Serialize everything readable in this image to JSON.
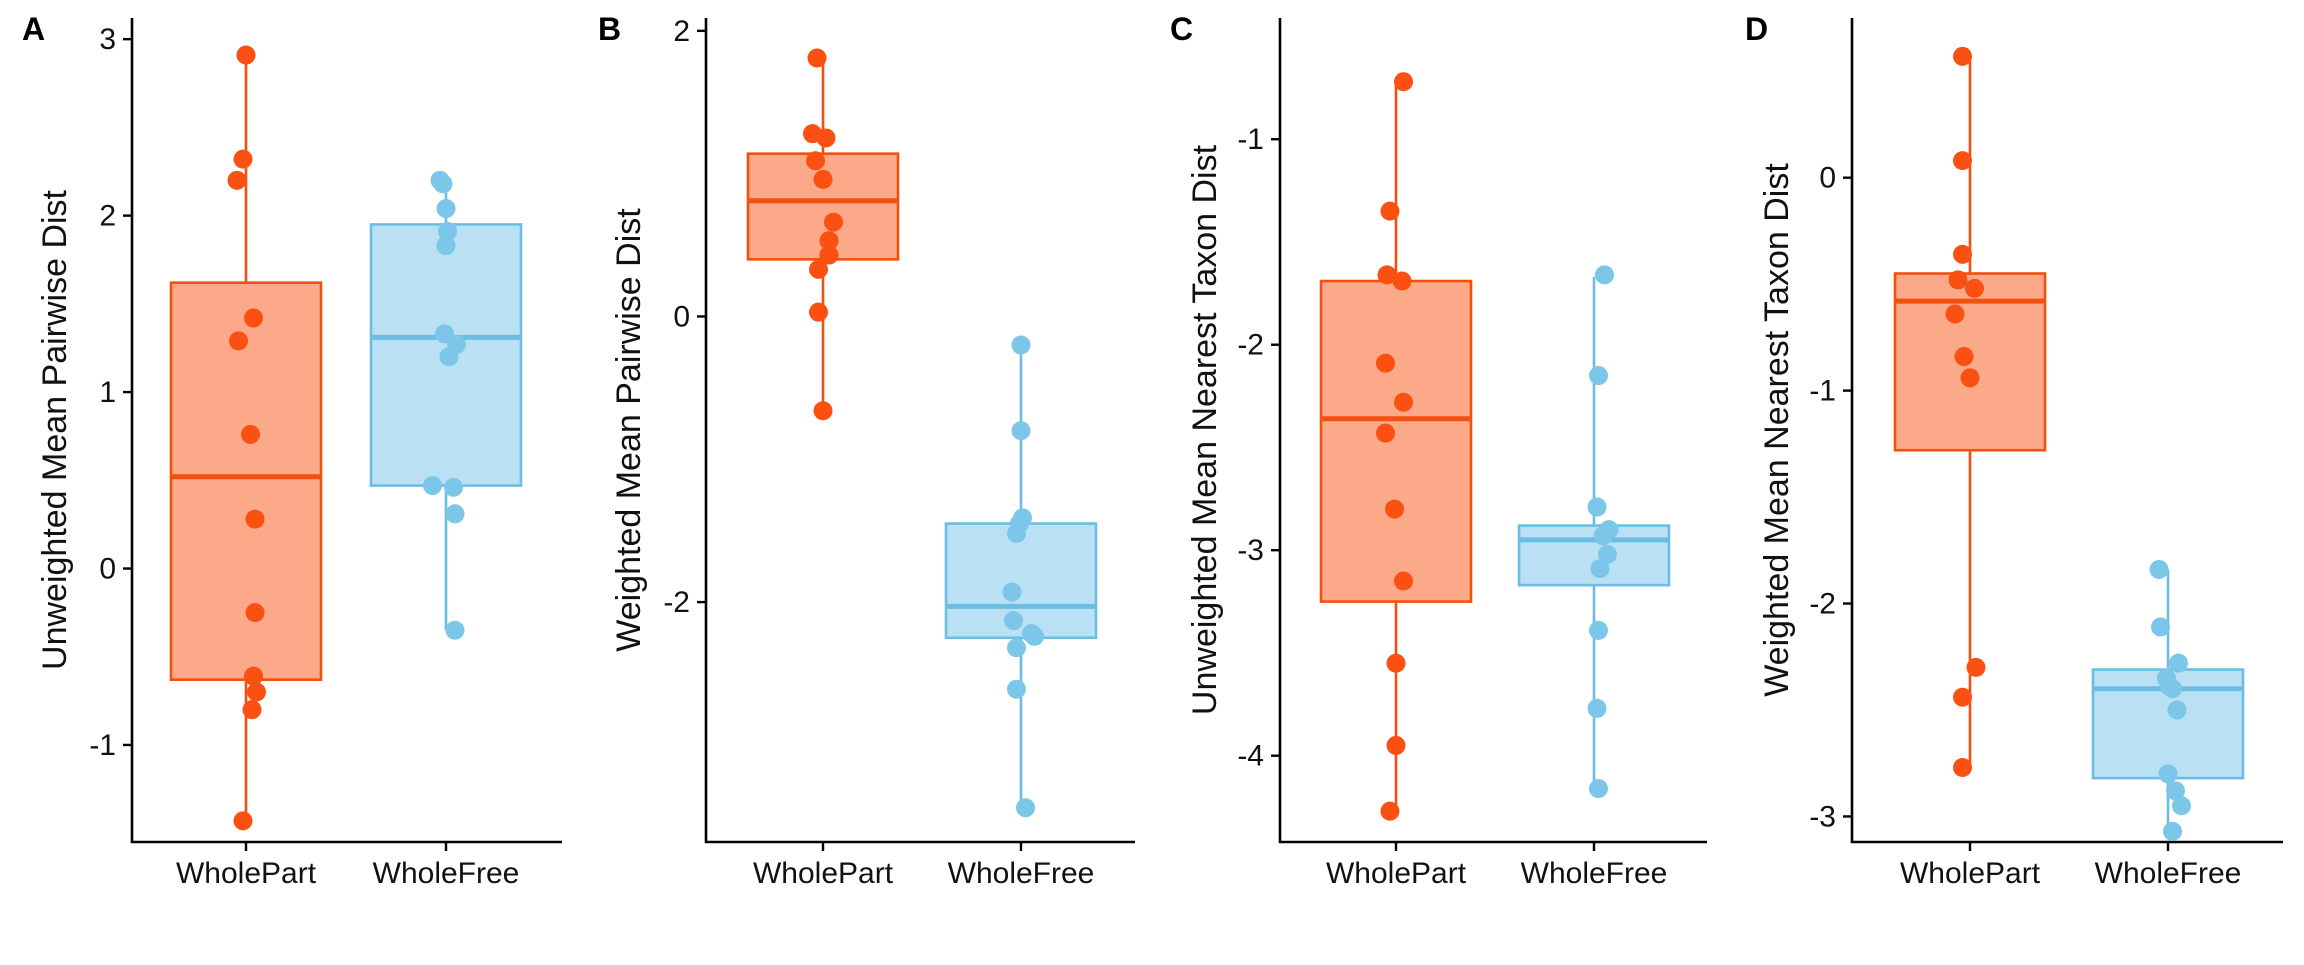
{
  "colors": {
    "WholePart": {
      "fill": "#fca98a",
      "line": "#f2500f",
      "point": "#fa5011"
    },
    "WholeFree": {
      "fill": "#b9e0f3",
      "line": "#6bbde3",
      "point": "#7cc6ea"
    }
  },
  "chart_data": [
    {
      "panel": "A",
      "type": "box",
      "ylabel": "Unweighted Mean Pairwise Dist",
      "xlabel": "",
      "categories": [
        "WholePart",
        "WholeFree"
      ],
      "ylim": [
        -1.55,
        3.12
      ],
      "yticks": [
        -1,
        0,
        1,
        2,
        3
      ],
      "ytick_labels": [
        "-1",
        "0",
        "1",
        "2",
        "3"
      ],
      "boxes": [
        {
          "category": "WholePart",
          "q1": -0.63,
          "median": 0.52,
          "q3": 1.62,
          "whisker_low": -1.43,
          "whisker_high": 2.91
        },
        {
          "category": "WholeFree",
          "q1": 0.47,
          "median": 1.31,
          "q3": 1.95,
          "whisker_low": -0.35,
          "whisker_high": 2.2
        }
      ],
      "points": [
        {
          "category": "WholePart",
          "values": [
            2.91,
            2.32,
            2.2,
            1.42,
            1.29,
            0.76,
            0.28,
            -0.25,
            -0.61,
            -0.7,
            -0.8,
            -1.43
          ],
          "jitter": [
            0.0,
            -0.02,
            -0.06,
            0.05,
            -0.05,
            0.03,
            0.06,
            0.06,
            0.05,
            0.07,
            0.04,
            -0.02
          ]
        },
        {
          "category": "WholeFree",
          "values": [
            2.2,
            2.18,
            2.04,
            1.91,
            1.83,
            1.33,
            1.27,
            1.2,
            0.47,
            0.46,
            0.31,
            -0.35
          ],
          "jitter": [
            -0.04,
            -0.02,
            0.0,
            0.01,
            0.0,
            -0.01,
            0.07,
            0.02,
            -0.09,
            0.05,
            0.06,
            0.06
          ]
        }
      ]
    },
    {
      "panel": "B",
      "type": "box",
      "ylabel": "Weighted Mean Pairwise Dist",
      "xlabel": "",
      "categories": [
        "WholePart",
        "WholeFree"
      ],
      "ylim": [
        -3.68,
        2.09
      ],
      "yticks": [
        -2,
        0,
        2
      ],
      "ytick_labels": [
        "-2",
        "0",
        "2"
      ],
      "boxes": [
        {
          "category": "WholePart",
          "q1": 0.4,
          "median": 0.81,
          "q3": 1.14,
          "whisker_low": -0.66,
          "whisker_high": 1.81
        },
        {
          "category": "WholeFree",
          "q1": -2.25,
          "median": -2.03,
          "q3": -1.45,
          "whisker_low": -3.44,
          "whisker_high": -0.2
        }
      ],
      "points": [
        {
          "category": "WholePart",
          "values": [
            1.81,
            1.28,
            1.25,
            1.09,
            0.96,
            0.66,
            0.53,
            0.43,
            0.33,
            0.03,
            -0.66
          ],
          "jitter": [
            -0.04,
            -0.07,
            0.02,
            -0.05,
            0.0,
            0.07,
            0.04,
            0.04,
            -0.03,
            -0.03,
            0.0
          ]
        },
        {
          "category": "WholeFree",
          "values": [
            -0.2,
            -0.8,
            -1.41,
            -1.45,
            -1.52,
            -1.93,
            -2.13,
            -2.22,
            -2.24,
            -2.32,
            -2.61,
            -3.44
          ],
          "jitter": [
            0.0,
            0.0,
            0.01,
            -0.01,
            -0.03,
            -0.06,
            -0.05,
            0.07,
            0.09,
            -0.03,
            -0.03,
            0.03
          ]
        }
      ]
    },
    {
      "panel": "C",
      "type": "box",
      "ylabel": "Unweighted Mean Nearest Taxon Dist",
      "xlabel": "",
      "categories": [
        "WholePart",
        "WholeFree"
      ],
      "ylim": [
        -4.42,
        -0.41
      ],
      "yticks": [
        -4,
        -3,
        -2,
        -1
      ],
      "ytick_labels": [
        "-4",
        "-3",
        "-2",
        "-1"
      ],
      "boxes": [
        {
          "category": "WholePart",
          "q1": -3.25,
          "median": -2.36,
          "q3": -1.69,
          "whisker_low": -4.27,
          "whisker_high": -0.72
        },
        {
          "category": "WholeFree",
          "q1": -3.17,
          "median": -2.95,
          "q3": -2.88,
          "whisker_low": -4.16,
          "whisker_high": -1.67
        }
      ],
      "points": [
        {
          "category": "WholePart",
          "values": [
            -0.72,
            -1.35,
            -1.66,
            -1.69,
            -2.09,
            -2.28,
            -2.43,
            -2.8,
            -3.15,
            -3.55,
            -3.95,
            -4.27
          ],
          "jitter": [
            0.05,
            -0.04,
            -0.06,
            0.04,
            -0.07,
            0.05,
            -0.07,
            -0.01,
            0.05,
            0.0,
            0.0,
            -0.04
          ]
        },
        {
          "category": "WholeFree",
          "values": [
            -1.66,
            -2.15,
            -2.79,
            -2.9,
            -2.93,
            -3.02,
            -3.09,
            -3.39,
            -3.77,
            -4.16
          ],
          "jitter": [
            0.07,
            0.03,
            0.02,
            0.1,
            0.06,
            0.09,
            0.04,
            0.03,
            0.02,
            0.03
          ]
        }
      ]
    },
    {
      "panel": "D",
      "type": "box",
      "ylabel": "Weighted Mean Nearest Taxon Dist",
      "xlabel": "",
      "categories": [
        "WholePart",
        "WholeFree"
      ],
      "ylim": [
        -3.12,
        0.75
      ],
      "yticks": [
        -3,
        -2,
        -1,
        0
      ],
      "ytick_labels": [
        "-3",
        "-2",
        "-1",
        "0"
      ],
      "boxes": [
        {
          "category": "WholePart",
          "q1": -1.28,
          "median": -0.58,
          "q3": -0.45,
          "whisker_low": -2.77,
          "whisker_high": 0.57
        },
        {
          "category": "WholeFree",
          "q1": -2.82,
          "median": -2.4,
          "q3": -2.31,
          "whisker_low": -3.07,
          "whisker_high": -1.84
        }
      ],
      "points": [
        {
          "category": "WholePart",
          "values": [
            0.57,
            0.08,
            -0.36,
            -0.48,
            -0.52,
            -0.64,
            -0.84,
            -0.94,
            -2.3,
            -2.44,
            -2.77
          ],
          "jitter": [
            -0.05,
            -0.05,
            -0.05,
            -0.08,
            0.03,
            -0.1,
            -0.04,
            0.0,
            0.04,
            -0.05,
            -0.05
          ]
        },
        {
          "category": "WholeFree",
          "values": [
            -1.84,
            -2.11,
            -2.28,
            -2.35,
            -2.39,
            -2.4,
            -2.5,
            -2.8,
            -2.88,
            -2.95,
            -3.07
          ],
          "jitter": [
            -0.06,
            -0.05,
            0.07,
            -0.01,
            0.01,
            0.03,
            0.06,
            0.0,
            0.05,
            0.09,
            0.03
          ]
        }
      ]
    }
  ]
}
